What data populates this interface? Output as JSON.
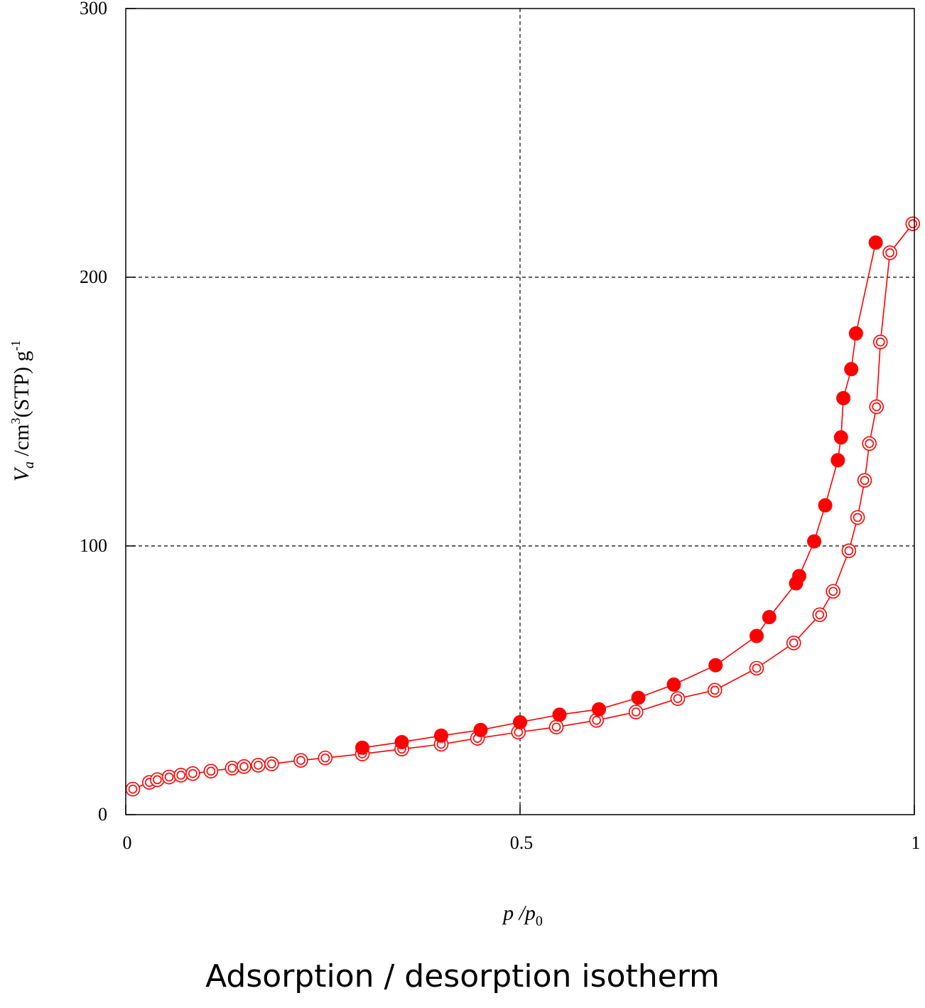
{
  "caption": "Adsorption / desorption isotherm",
  "chart_data": {
    "type": "scatter",
    "title": "",
    "xlabel": "p /p0",
    "ylabel": "Va /cm3(STP) g-1",
    "xlabel_parts": {
      "p": "p",
      "sep": " /p",
      "sub": "0"
    },
    "ylabel_parts": {
      "v": "V",
      "vsub": "a",
      "unit1": " /cm",
      "sup3": "3",
      "unit2": "(STP) g",
      "supneg": "-1"
    },
    "xlim": [
      0,
      1
    ],
    "ylim": [
      0,
      300
    ],
    "xticks": [
      0,
      0.5,
      1
    ],
    "xtick_labels": [
      "0",
      "0.5",
      "1"
    ],
    "yticks": [
      0,
      100,
      200,
      300
    ],
    "ytick_labels": [
      "0",
      "100",
      "200",
      "300"
    ],
    "grid": true,
    "series": [
      {
        "marker": "open-double-circle",
        "color": "#ff0000",
        "x": [
          0.009,
          0.03,
          0.04,
          0.055,
          0.07,
          0.085,
          0.108,
          0.135,
          0.15,
          0.168,
          0.185,
          0.222,
          0.253,
          0.3,
          0.35,
          0.4,
          0.446,
          0.498,
          0.546,
          0.597,
          0.647,
          0.7,
          0.747,
          0.8,
          0.847,
          0.88,
          0.897,
          0.917,
          0.928,
          0.937,
          0.943,
          0.952,
          0.957,
          0.969,
          0.998
        ],
        "y": [
          9.5,
          12,
          13,
          14,
          14.7,
          15.3,
          16.2,
          17.3,
          17.9,
          18.4,
          18.9,
          20.2,
          21.1,
          22.6,
          24.4,
          26.2,
          28.4,
          30.7,
          32.6,
          35.1,
          38.2,
          43.2,
          46.3,
          54.5,
          63.9,
          74.4,
          83.1,
          98.2,
          110.6,
          124.4,
          138.1,
          151.8,
          175.9,
          209.1,
          219.9
        ]
      },
      {
        "marker": "filled-circle",
        "color": "#ff0000",
        "x": [
          0.3,
          0.35,
          0.4,
          0.45,
          0.5,
          0.55,
          0.6,
          0.65,
          0.695,
          0.748,
          0.8,
          0.816,
          0.85,
          0.854,
          0.873,
          0.887,
          0.903,
          0.907,
          0.91,
          0.92,
          0.926,
          0.951
        ],
        "y": [
          24.9,
          27,
          29.4,
          31.5,
          34.4,
          37.2,
          39.2,
          43.5,
          48.4,
          55.6,
          66.5,
          73.5,
          86.1,
          88.8,
          101.7,
          115.1,
          131.9,
          140.4,
          155,
          165.8,
          179.1,
          212.9
        ]
      }
    ]
  }
}
